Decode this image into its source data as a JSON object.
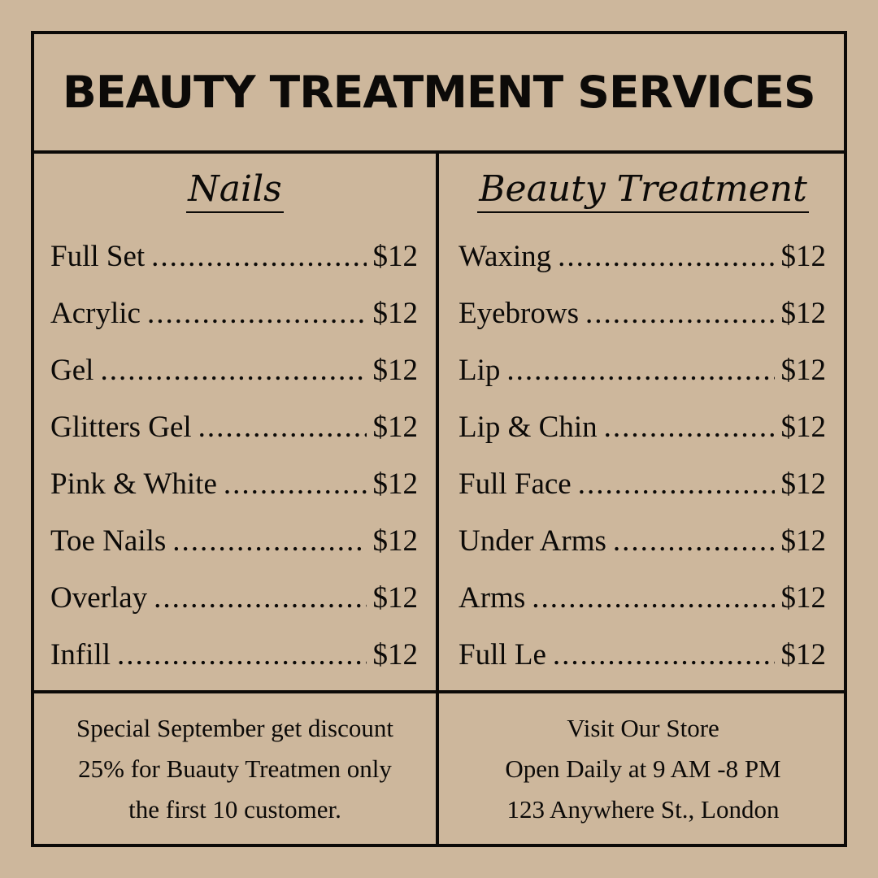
{
  "title": "BEAUTY TREATMENT SERVICES",
  "colors": {
    "background": "#cdb79c",
    "ink": "#0c0a08"
  },
  "nails": {
    "heading": "Nails",
    "items": [
      {
        "name": "Full Set",
        "price": "$12"
      },
      {
        "name": "Acrylic",
        "price": "$12"
      },
      {
        "name": "Gel",
        "price": "$12"
      },
      {
        "name": "Glitters Gel",
        "price": "$12"
      },
      {
        "name": "Pink & White",
        "price": "$12"
      },
      {
        "name": "Toe Nails",
        "price": "$12"
      },
      {
        "name": "Overlay",
        "price": "$12"
      },
      {
        "name": "Infill",
        "price": "$12"
      }
    ]
  },
  "beauty": {
    "heading": "Beauty Treatment",
    "items": [
      {
        "name": "Waxing",
        "price": "$12"
      },
      {
        "name": "Eyebrows",
        "price": "$12"
      },
      {
        "name": "Lip",
        "price": "$12"
      },
      {
        "name": "Lip & Chin",
        "price": "$12"
      },
      {
        "name": "Full Face",
        "price": "$12"
      },
      {
        "name": "Under Arms",
        "price": "$12"
      },
      {
        "name": "Arms",
        "price": "$12"
      },
      {
        "name": "Full Le",
        "price": "$12"
      }
    ]
  },
  "promo": {
    "lines": [
      "Special September get discount",
      "25% for Buauty Treatmen only",
      "the first 10 customer."
    ]
  },
  "store": {
    "lines": [
      "Visit Our Store",
      "Open Daily at 9 AM -8 PM",
      "123 Anywhere St., London"
    ]
  }
}
